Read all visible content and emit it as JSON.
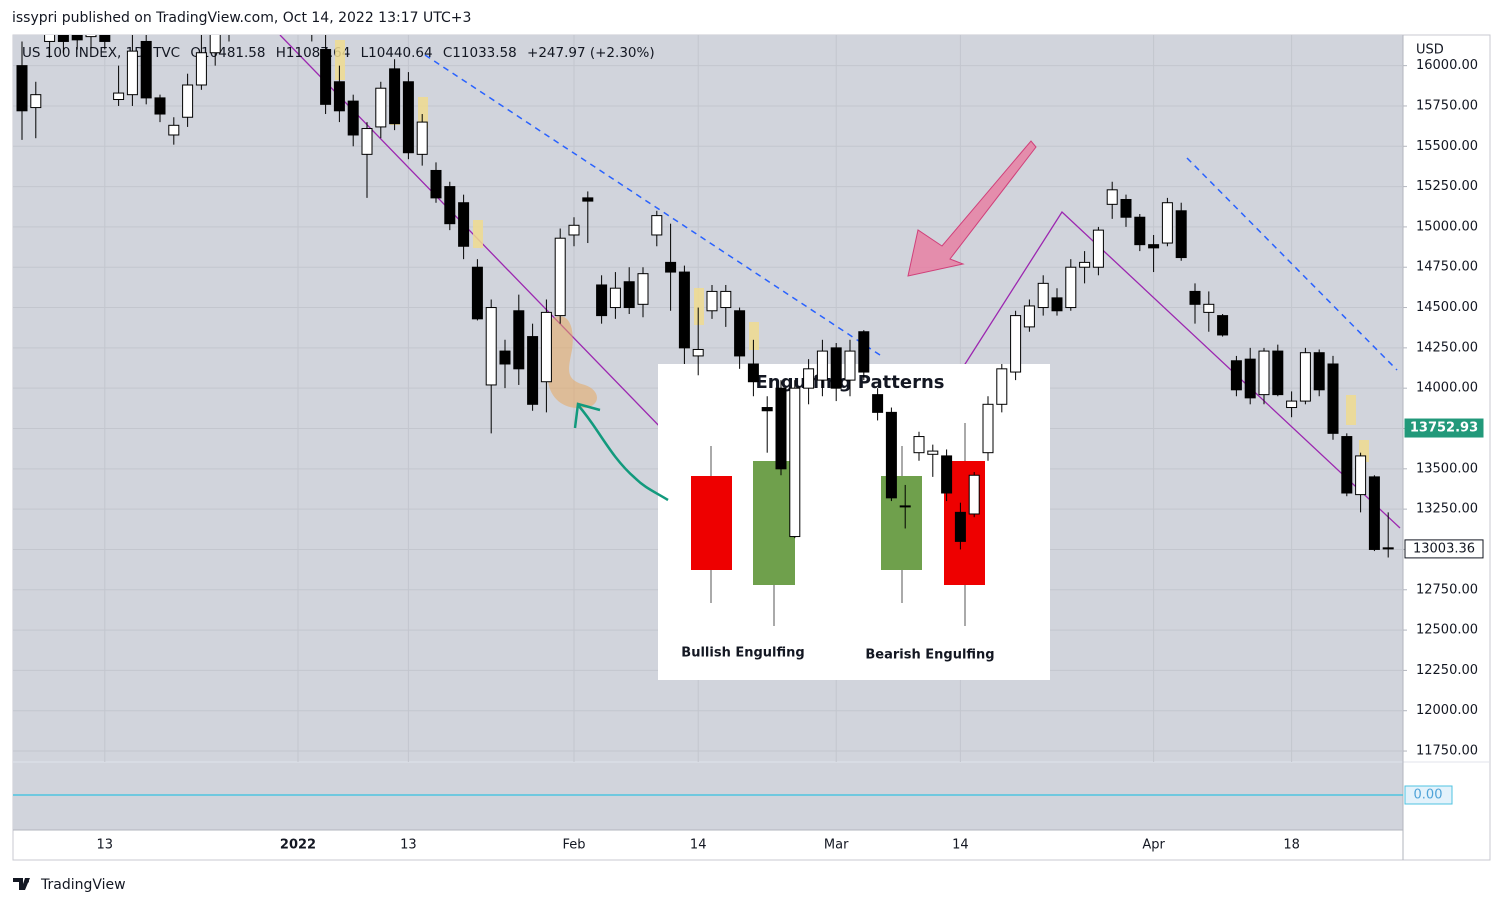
{
  "header": {
    "text": "issypri published on TradingView.com, Oct 14, 2022 13:17 UTC+3"
  },
  "footer": {
    "brand": "TradingView"
  },
  "overlay": {
    "title": "Engulfing Patterns",
    "left_label": "Bullish Engulfing",
    "right_label": "Bearish Engulfing"
  },
  "chart_data": {
    "type": "candlestick",
    "legend": {
      "symbol": "US 100 INDEX, 1D, TVC",
      "open": "O10481.58",
      "high": "H11087.64",
      "low": "L10440.64",
      "close": "C11033.58",
      "change": "+247.97 (+2.30%)"
    },
    "y_unit": "USD",
    "categories": [
      null,
      null,
      null,
      null,
      null,
      null,
      "13",
      null,
      null,
      null,
      null,
      null,
      null,
      null,
      null,
      null,
      null,
      null,
      null,
      null,
      "2022",
      null,
      null,
      null,
      null,
      null,
      null,
      null,
      "13",
      null,
      null,
      null,
      null,
      null,
      null,
      null,
      null,
      null,
      null,
      null,
      "Feb",
      null,
      null,
      null,
      null,
      null,
      null,
      null,
      null,
      "14",
      null,
      null,
      null,
      null,
      null,
      null,
      null,
      null,
      null,
      "Mar",
      null,
      null,
      null,
      null,
      null,
      null,
      null,
      null,
      "14",
      null,
      null,
      null,
      null,
      null,
      null,
      null,
      null,
      null,
      null,
      null,
      null,
      null,
      "Apr",
      null,
      null,
      null,
      null,
      null,
      null,
      null,
      null,
      null,
      "18",
      null,
      null,
      null,
      null,
      null,
      null,
      null
    ],
    "open": [
      16000,
      15740,
      16150,
      16250,
      16200,
      16180,
      16200,
      15790,
      15820,
      16150,
      15800,
      15570,
      15680,
      15880,
      16080,
      16200,
      16350,
      16300,
      16380,
      16450,
      16420,
      16300,
      16100,
      15900,
      15780,
      15450,
      15620,
      15980,
      15900,
      15450,
      15350,
      15250,
      15150,
      14750,
      14020,
      14230,
      14480,
      14320,
      14040,
      14450,
      14950,
      15180,
      14640,
      14500,
      14660,
      14520,
      14950,
      14780,
      14720,
      14200,
      14480,
      14500,
      14480,
      14150,
      13880,
      14000,
      13080,
      14000,
      14050,
      14250,
      14050,
      14350,
      13960,
      13850,
      13270,
      13600,
      13590,
      13580,
      13230,
      13220,
      13600,
      13900,
      14100,
      14380,
      14500,
      14560,
      14500,
      14750,
      14750,
      15140,
      15170,
      15060,
      14890,
      14900,
      15100,
      14600,
      14470,
      14450,
      14170,
      14180,
      13960,
      14230,
      13880,
      13920,
      14220,
      14150,
      13700,
      13340,
      13450,
      13010
    ],
    "high": [
      16150,
      15900,
      16300,
      16350,
      16250,
      16350,
      16300,
      16000,
      16200,
      16250,
      15820,
      15680,
      15950,
      16200,
      16300,
      16400,
      16450,
      16420,
      16500,
      16550,
      16520,
      16380,
      16200,
      16000,
      15820,
      15650,
      15900,
      16040,
      15960,
      15700,
      15400,
      15280,
      15200,
      14800,
      14550,
      14300,
      14580,
      14400,
      14550,
      14990,
      15060,
      15220,
      14700,
      14720,
      14750,
      14750,
      15100,
      15020,
      14760,
      14500,
      14640,
      14640,
      14500,
      14300,
      13950,
      14050,
      14050,
      14180,
      14300,
      14280,
      14300,
      14360,
      14000,
      13880,
      13400,
      13730,
      13650,
      13620,
      13290,
      13480,
      13950,
      14150,
      14480,
      14550,
      14700,
      14620,
      14800,
      14850,
      15000,
      15280,
      15200,
      15080,
      14950,
      15180,
      15150,
      14650,
      14600,
      14460,
      14200,
      14250,
      14250,
      14270,
      13980,
      14250,
      14240,
      14200,
      13720,
      13600,
      13460,
      13230
    ],
    "low": [
      15540,
      15550,
      16050,
      16080,
      16100,
      16100,
      16100,
      15750,
      15750,
      15760,
      15650,
      15510,
      15620,
      15850,
      16000,
      16150,
      16250,
      16200,
      16300,
      16380,
      16250,
      16150,
      15700,
      15650,
      15500,
      15180,
      15550,
      15600,
      15420,
      15380,
      15150,
      14980,
      14800,
      14420,
      13720,
      14000,
      14020,
      13860,
      13850,
      14400,
      14880,
      14900,
      14400,
      14430,
      14460,
      14440,
      14880,
      14480,
      14150,
      14080,
      14430,
      14380,
      14120,
      13950,
      13600,
      13460,
      13070,
      13900,
      13950,
      13920,
      13950,
      14050,
      13800,
      13300,
      13130,
      13550,
      13450,
      13300,
      13000,
      13200,
      13550,
      13850,
      14050,
      14350,
      14450,
      14450,
      14480,
      14650,
      14700,
      15050,
      15000,
      14850,
      14720,
      14880,
      14790,
      14400,
      14350,
      14320,
      13950,
      13900,
      13900,
      13950,
      13820,
      13900,
      13950,
      13680,
      13330,
      13230,
      12990,
      12950
    ],
    "close": [
      15720,
      15820,
      16250,
      16150,
      16160,
      16280,
      16150,
      15830,
      16090,
      15800,
      15700,
      15630,
      15880,
      16080,
      16200,
      16350,
      16300,
      16380,
      16450,
      16420,
      16300,
      16200,
      15760,
      15720,
      15570,
      15610,
      15860,
      15640,
      15460,
      15650,
      15180,
      15020,
      14880,
      14430,
      14500,
      14150,
      14120,
      13900,
      14470,
      14930,
      15010,
      15160,
      14450,
      14620,
      14500,
      14710,
      15070,
      14720,
      14250,
      14240,
      14600,
      14600,
      14200,
      14040,
      13860,
      13500,
      14000,
      14120,
      14230,
      14000,
      14230,
      14100,
      13850,
      13320,
      13270,
      13700,
      13610,
      13350,
      13050,
      13460,
      13900,
      14120,
      14450,
      14510,
      14650,
      14480,
      14750,
      14780,
      14980,
      15230,
      15060,
      14890,
      14870,
      15150,
      14810,
      14520,
      14520,
      14330,
      13990,
      13940,
      14230,
      13960,
      13920,
      14220,
      13990,
      13720,
      13350,
      13580,
      13000,
      13003.36
    ],
    "up_color": "#ffffff",
    "down_color": "#000000",
    "ylim": [
      11682,
      16190
    ],
    "yticks": [
      {
        "value": 11750,
        "label": "11750.00"
      },
      {
        "value": 12000,
        "label": "12000.00"
      },
      {
        "value": 12250,
        "label": "12250.00"
      },
      {
        "value": 12500,
        "label": "12500.00"
      },
      {
        "value": 12750,
        "label": "12750.00"
      },
      {
        "value": 13000,
        "label": "13000.00"
      },
      {
        "value": 13250,
        "label": "13250.00"
      },
      {
        "value": 13500,
        "label": "13500.00"
      },
      {
        "value": 13750,
        "label": "13750.00"
      },
      {
        "value": 14000,
        "label": "14000.00"
      },
      {
        "value": 14250,
        "label": "14250.00"
      },
      {
        "value": 14500,
        "label": "14500.00"
      },
      {
        "value": 14750,
        "label": "14750.00"
      },
      {
        "value": 15000,
        "label": "15000.00"
      },
      {
        "value": 15250,
        "label": "15250.00"
      },
      {
        "value": 15500,
        "label": "15500.00"
      },
      {
        "value": 15750,
        "label": "15750.00"
      },
      {
        "value": 16000,
        "label": "16000.00"
      }
    ],
    "grid": true,
    "price_labels": [
      {
        "value": 13752.93,
        "label": "13752.93",
        "color": "#22997a"
      },
      {
        "value": 13003.36,
        "label": "13003.36",
        "color": "#ffffff"
      }
    ],
    "indicator": {
      "value": 0,
      "label": "0.00",
      "color": "#4fc3e0"
    }
  }
}
